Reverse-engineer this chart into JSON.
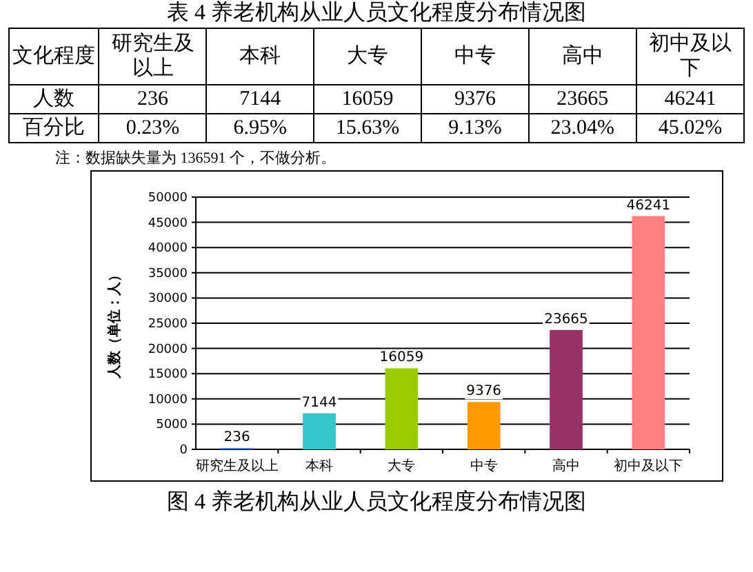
{
  "chart_data": [
    {
      "type": "other",
      "title": "表 4 养老机构从业人员文化程度分布情况图",
      "xlabel": "文化程度",
      "categories": [
        "研究生及以上",
        "本科",
        "大专",
        "中专",
        "高中",
        "初中及以下"
      ],
      "data_labels": true,
      "series": [
        {
          "name": "人数",
          "values": [
            236,
            7144,
            16059,
            9376,
            23665,
            46241
          ]
        },
        {
          "name": "百分比",
          "values": [
            0.23,
            6.95,
            15.63,
            9.13,
            23.04,
            45.02
          ],
          "value_labels": [
            "0.23%",
            "6.95%",
            "15.63%",
            "9.13%",
            "23.04%",
            "45.02%"
          ]
        }
      ],
      "annotations": [
        "注：数据缺失量为 136591 个，不做分析。"
      ]
    },
    {
      "type": "bar",
      "title": "图 4 养老机构从业人员文化程度分布情况图",
      "ylabel": "人数（单位：人）",
      "categories": [
        "研究生及以上",
        "本科",
        "大专",
        "中专",
        "高中",
        "初中及以下"
      ],
      "values": [
        236,
        7144,
        16059,
        9376,
        23665,
        46241
      ],
      "colors": [
        "#3366cc",
        "#33c6cc",
        "#99cc00",
        "#ff9900",
        "#993366",
        "#ff8080"
      ],
      "ylim": [
        0,
        50000
      ],
      "yticks": [
        0,
        5000,
        10000,
        15000,
        20000,
        25000,
        30000,
        35000,
        40000,
        45000,
        50000
      ],
      "grid": "y",
      "data_labels": true
    }
  ]
}
